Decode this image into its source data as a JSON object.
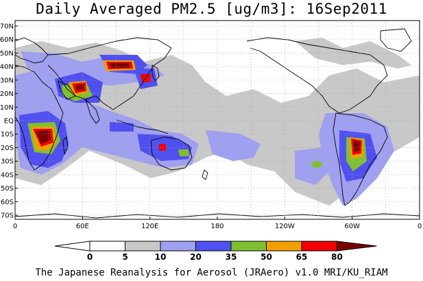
{
  "title": "Daily Averaged PM2.5 [ug/m3]: 16Sep2011",
  "footer": "The Japanese Reanalysis for Aerosol (JRAero) v1.0 MRI/KU_RIAM",
  "map": {
    "lat_ticks": [
      "70N",
      "60N",
      "50N",
      "40N",
      "30N",
      "20N",
      "10N",
      "EQ",
      "10S",
      "20S",
      "30S",
      "40S",
      "50S",
      "60S",
      "70S"
    ],
    "lon_ticks": [
      "0",
      "60E",
      "120E",
      "180",
      "120W",
      "60W",
      "0"
    ],
    "coast_color": "#000000",
    "grid_color": "#a0a0a0"
  },
  "colorbar": {
    "labels": [
      "0",
      "5",
      "10",
      "20",
      "35",
      "50",
      "65",
      "80"
    ],
    "colors": [
      "#ffffff",
      "#c8c8c8",
      "#a0a0f0",
      "#5050f0",
      "#80c030",
      "#f0a000",
      "#f00000",
      "#780000"
    ]
  }
}
